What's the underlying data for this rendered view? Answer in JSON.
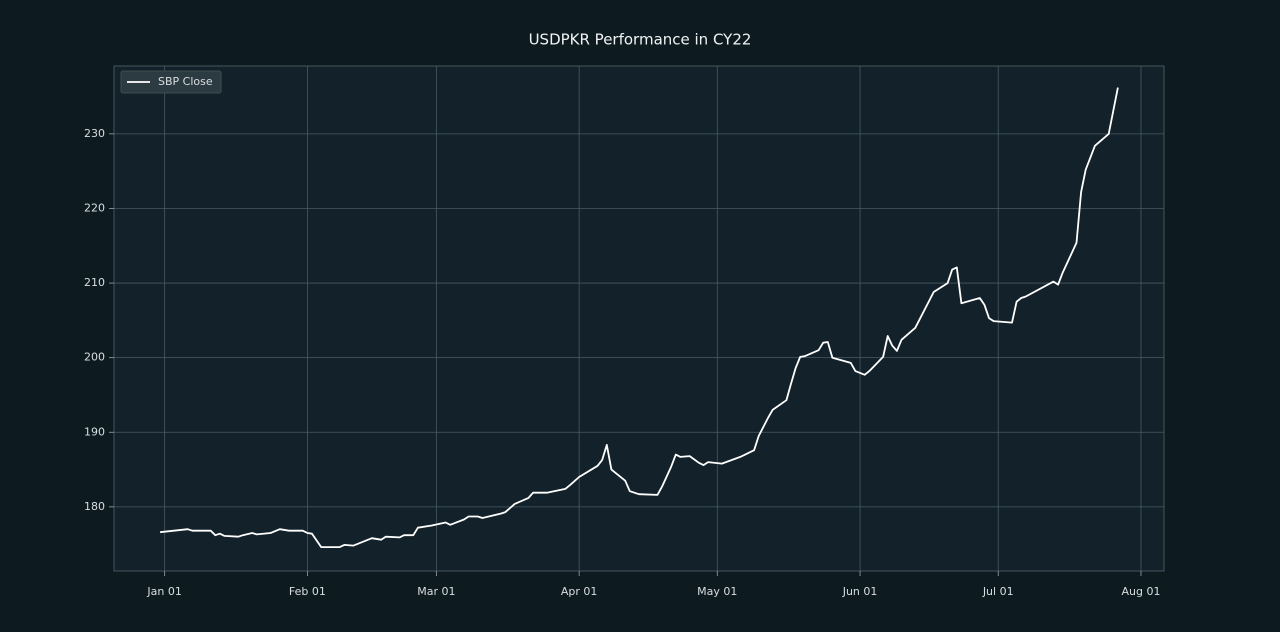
{
  "chart_data": {
    "type": "line",
    "title": "USDPKR Performance in CY22",
    "x": [
      "Dec 31",
      "Jan 06",
      "Jan 07",
      "Jan 11",
      "Jan 12",
      "Jan 13",
      "Jan 14",
      "Jan 17",
      "Jan 18",
      "Jan 20",
      "Jan 21",
      "Jan 24",
      "Jan 26",
      "Jan 28",
      "Jan 31",
      "Feb 01",
      "Feb 02",
      "Feb 04",
      "Feb 08",
      "Feb 09",
      "Feb 11",
      "Feb 15",
      "Feb 17",
      "Feb 18",
      "Feb 21",
      "Feb 22",
      "Feb 24",
      "Feb 25",
      "Feb 28",
      "Mar 03",
      "Mar 04",
      "Mar 07",
      "Mar 08",
      "Mar 10",
      "Mar 11",
      "Mar 15",
      "Mar 16",
      "Mar 18",
      "Mar 21",
      "Mar 22",
      "Mar 25",
      "Mar 29",
      "Mar 30",
      "Apr 01",
      "Apr 05",
      "Apr 06",
      "Apr 07",
      "Apr 08",
      "Apr 11",
      "Apr 12",
      "Apr 14",
      "Apr 18",
      "Apr 19",
      "Apr 21",
      "Apr 22",
      "Apr 23",
      "Apr 25",
      "Apr 27",
      "Apr 28",
      "Apr 29",
      "May 02",
      "May 06",
      "May 09",
      "May 10",
      "May 12",
      "May 13",
      "May 16",
      "May 17",
      "May 18",
      "May 19",
      "May 20",
      "May 23",
      "May 24",
      "May 25",
      "May 26",
      "May 30",
      "May 31",
      "Jun 02",
      "Jun 03",
      "Jun 06",
      "Jun 07",
      "Jun 08",
      "Jun 09",
      "Jun 10",
      "Jun 13",
      "Jun 17",
      "Jun 20",
      "Jun 21",
      "Jun 22",
      "Jun 23",
      "Jun 27",
      "Jun 28",
      "Jun 29",
      "Jun 30",
      "Jul 04",
      "Jul 05",
      "Jul 06",
      "Jul 07",
      "Jul 13",
      "Jul 14",
      "Jul 15",
      "Jul 18",
      "Jul 19",
      "Jul 20",
      "Jul 22",
      "Jul 25",
      "Jul 27"
    ],
    "series": [
      {
        "name": "SBP Close",
        "color": "#ffffff",
        "values": [
          176.6,
          177.0,
          176.8,
          176.8,
          176.2,
          176.4,
          176.1,
          176.0,
          176.2,
          176.5,
          176.3,
          176.5,
          177.0,
          176.8,
          176.8,
          176.5,
          176.4,
          174.6,
          174.6,
          174.9,
          174.8,
          175.8,
          175.6,
          176.0,
          175.9,
          176.2,
          176.2,
          177.2,
          177.5,
          177.9,
          177.6,
          178.3,
          178.7,
          178.7,
          178.5,
          179.1,
          179.3,
          180.4,
          181.2,
          181.9,
          181.9,
          182.4,
          182.9,
          184.0,
          185.5,
          186.3,
          188.3,
          185.0,
          183.5,
          182.1,
          181.7,
          181.6,
          182.7,
          185.4,
          187.0,
          186.7,
          186.8,
          185.9,
          185.6,
          186.0,
          185.8,
          186.7,
          187.6,
          189.5,
          191.9,
          193.0,
          194.3,
          196.5,
          198.6,
          200.1,
          200.2,
          201.0,
          202.0,
          202.1,
          200.0,
          199.3,
          198.2,
          197.7,
          198.2,
          200.1,
          202.9,
          201.6,
          200.9,
          202.4,
          204.0,
          208.8,
          210.0,
          211.8,
          212.1,
          207.3,
          208.0,
          207.1,
          205.3,
          204.9,
          204.7,
          207.5,
          208.0,
          208.2,
          210.2,
          209.8,
          211.4,
          215.4,
          222.2,
          225.2,
          228.4,
          230.0,
          236.2
        ]
      }
    ],
    "xlim": [
      "Dec 21",
      "Aug 06"
    ],
    "xticks": [
      "Jan 01",
      "Feb 01",
      "Mar 01",
      "Apr 01",
      "May 01",
      "Jun 01",
      "Jul 01",
      "Aug 01"
    ],
    "ylim": [
      171.4,
      239.1
    ],
    "yticks": [
      180,
      190,
      200,
      210,
      220,
      230
    ],
    "grid": true,
    "legend": "upper-left"
  }
}
